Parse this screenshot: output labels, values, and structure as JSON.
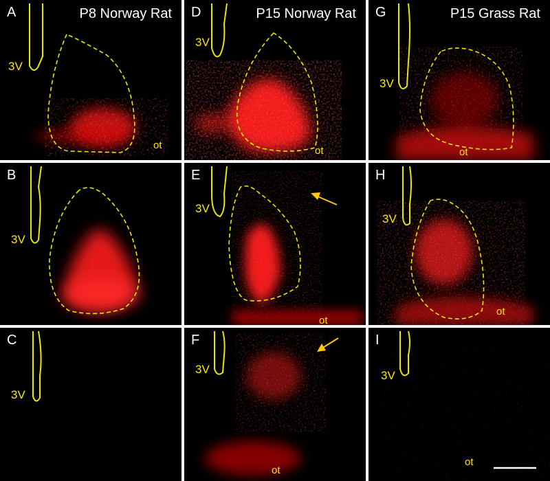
{
  "figure": {
    "columns": [
      "P8 Norway Rat",
      "P15 Norway Rat",
      "P15 Grass Rat"
    ],
    "panels": [
      {
        "label": "A",
        "ventricle": "3V",
        "tract": "ot"
      },
      {
        "label": "B",
        "ventricle": "3V"
      },
      {
        "label": "C",
        "ventricle": "3V"
      },
      {
        "label": "D",
        "ventricle": "3V",
        "tract": "ot"
      },
      {
        "label": "E",
        "ventricle": "3V",
        "tract": "ot"
      },
      {
        "label": "F",
        "ventricle": "3V",
        "tract": "ot"
      },
      {
        "label": "G",
        "ventricle": "3V",
        "tract": "ot"
      },
      {
        "label": "H",
        "ventricle": "3V",
        "tract": "ot"
      },
      {
        "label": "I",
        "ventricle": "3V",
        "tract": "ot"
      }
    ],
    "colors": {
      "background": "#000000",
      "signal": "#ff1a1a",
      "outline": "#e8e800",
      "label": "#ffffff",
      "arrow": "#ffc800"
    }
  }
}
